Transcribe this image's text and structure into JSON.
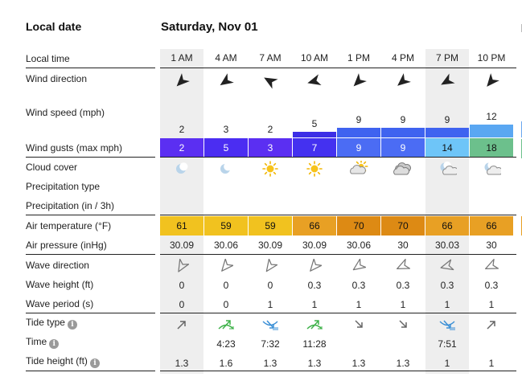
{
  "header": {
    "left_label": "Local date",
    "date": "Saturday, Nov 01"
  },
  "labels": {
    "local_time": "Local time",
    "wind_direction": "Wind direction",
    "wind_speed": "Wind speed (mph)",
    "wind_gusts": "Wind gusts (max mph)",
    "cloud_cover": "Cloud cover",
    "precip_type": "Precipitation type",
    "precip": "Precipitation (in / 3h)",
    "air_temp": "Air temperature (°F)",
    "air_pressure": "Air pressure (inHg)",
    "wave_direction": "Wave direction",
    "wave_height": "Wave height (ft)",
    "wave_period": "Wave period (s)",
    "tide_type": "Tide type",
    "tide_time": "Time",
    "tide_height": "Tide height (ft)"
  },
  "colors": {
    "gust": [
      "#5b2ff2",
      "#4b2df2",
      "#5b2ff2",
      "#4431f0",
      "#4b6cf4",
      "#4b6cf4",
      "#6ec5f8",
      "#6cc08c"
    ],
    "wind_bar": [
      "#3c2ee6",
      "#3c2ee6",
      "#3c2ee6",
      "#3c2ee6",
      "#3f63f0",
      "#3f63f0",
      "#3f63f0",
      "#5aa7f2"
    ],
    "temp": [
      "#f1c21f",
      "#f1c21f",
      "#f1c21f",
      "#e8a024",
      "#dd8a14",
      "#dd8a14",
      "#e8a024",
      "#e8a024"
    ],
    "tide_rising": "#3fb24a",
    "tide_falling": "#3a8fd6"
  },
  "columns": [
    {
      "time": "1 AM",
      "wind_dir_icon": "arrow-icon",
      "wind_rot": 225,
      "wind_speed": "2",
      "gust": "2",
      "cloud_icon": "moon-icon",
      "temp": "61",
      "pressure": "30.09",
      "wave_rot": 210,
      "wave_height": "0",
      "wave_period": "0",
      "tide_type": "rising",
      "tide_time": "",
      "tide_height": "1.3"
    },
    {
      "time": "4 AM",
      "wind_dir_icon": "arrow-icon",
      "wind_rot": 235,
      "wind_speed": "3",
      "gust": "5",
      "cloud_icon": "moon-icon",
      "temp": "59",
      "pressure": "30.06",
      "wave_rot": 220,
      "wave_height": "0",
      "wave_period": "0",
      "tide_type": "high-tide",
      "tide_time": "4:23",
      "tide_height": "1.6"
    },
    {
      "time": "7 AM",
      "wind_dir_icon": "arrow-icon",
      "wind_rot": 300,
      "wind_speed": "2",
      "gust": "3",
      "cloud_icon": "sun-icon",
      "temp": "59",
      "pressure": "30.09",
      "wave_rot": 215,
      "wave_height": "0",
      "wave_period": "1",
      "tide_type": "low-tide",
      "tide_time": "7:32",
      "tide_height": "1.3"
    },
    {
      "time": "10 AM",
      "wind_dir_icon": "arrow-icon",
      "wind_rot": 255,
      "wind_speed": "5",
      "gust": "7",
      "cloud_icon": "sun-icon",
      "temp": "66",
      "pressure": "30.09",
      "wave_rot": 220,
      "wave_height": "0.3",
      "wave_period": "1",
      "tide_type": "high-tide",
      "tide_time": "11:28",
      "tide_height": "1.3"
    },
    {
      "time": "1 PM",
      "wind_dir_icon": "arrow-icon",
      "wind_rot": 225,
      "wind_speed": "9",
      "gust": "9",
      "cloud_icon": "partly-cloudy-icon",
      "temp": "70",
      "pressure": "30.06",
      "wave_rot": 235,
      "wave_height": "0.3",
      "wave_period": "1",
      "tide_type": "falling",
      "tide_time": "",
      "tide_height": "1.3"
    },
    {
      "time": "4 PM",
      "wind_dir_icon": "arrow-icon",
      "wind_rot": 230,
      "wind_speed": "9",
      "gust": "9",
      "cloud_icon": "cloud-icon",
      "temp": "70",
      "pressure": "30",
      "wave_rot": 245,
      "wave_height": "0.3",
      "wave_period": "1",
      "tide_type": "falling",
      "tide_time": "",
      "tide_height": "1.3"
    },
    {
      "time": "7 PM",
      "wind_dir_icon": "arrow-icon",
      "wind_rot": 240,
      "wind_speed": "9",
      "gust": "14",
      "cloud_icon": "night-cloud-icon",
      "temp": "66",
      "pressure": "30.03",
      "wave_rot": 255,
      "wave_height": "0.3",
      "wave_period": "1",
      "tide_type": "low-tide",
      "tide_time": "7:51",
      "tide_height": "1"
    },
    {
      "time": "10 PM",
      "wind_dir_icon": "arrow-icon",
      "wind_rot": 220,
      "wind_speed": "12",
      "gust": "18",
      "cloud_icon": "night-cloud-icon",
      "temp": "66",
      "pressure": "30",
      "wave_rot": 245,
      "wave_height": "0.3",
      "wave_period": "1",
      "tide_type": "rising",
      "tide_time": "",
      "tide_height": "1"
    }
  ],
  "wind_speed_bar_levels": [
    0,
    0,
    0,
    5,
    9,
    9,
    9,
    12
  ]
}
